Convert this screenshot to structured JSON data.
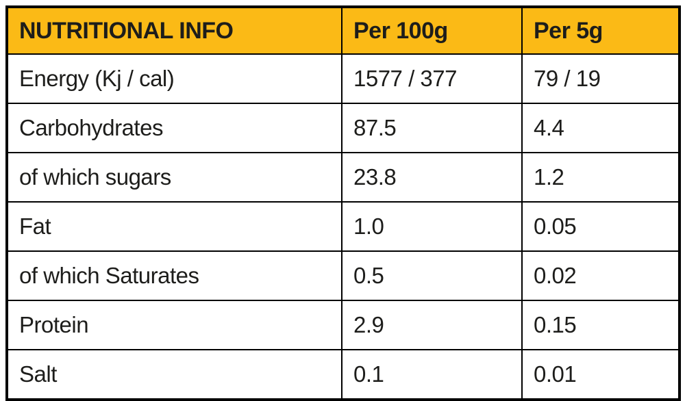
{
  "colors": {
    "header_bg": "#fbba16",
    "border": "#000000",
    "text": "#1d1d1b",
    "row_bg": "#ffffff"
  },
  "table": {
    "header": {
      "col1": "NUTRITIONAL INFO",
      "col2": "Per 100g",
      "col3": "Per 5g"
    },
    "rows": [
      {
        "label": "Energy (Kj / cal)",
        "per100g": "1577 / 377",
        "per5g": "79 / 19"
      },
      {
        "label": "Carbohydrates",
        "per100g": "87.5",
        "per5g": "4.4"
      },
      {
        "label": "of which sugars",
        "per100g": "23.8",
        "per5g": "1.2"
      },
      {
        "label": "Fat",
        "per100g": "1.0",
        "per5g": "0.05"
      },
      {
        "label": "of which Saturates",
        "per100g": "0.5",
        "per5g": "0.02"
      },
      {
        "label": "Protein",
        "per100g": "2.9",
        "per5g": "0.15"
      },
      {
        "label": "Salt",
        "per100g": "0.1",
        "per5g": "0.01"
      }
    ]
  },
  "chart_data": {
    "type": "table",
    "title": "NUTRITIONAL INFO",
    "columns": [
      "NUTRITIONAL INFO",
      "Per 100g",
      "Per 5g"
    ],
    "rows": [
      [
        "Energy (Kj / cal)",
        "1577 / 377",
        "79 / 19"
      ],
      [
        "Carbohydrates",
        "87.5",
        "4.4"
      ],
      [
        "of which sugars",
        "23.8",
        "1.2"
      ],
      [
        "Fat",
        "1.0",
        "0.05"
      ],
      [
        "of which Saturates",
        "0.5",
        "0.02"
      ],
      [
        "Protein",
        "2.9",
        "0.15"
      ],
      [
        "Salt",
        "0.1",
        "0.01"
      ]
    ]
  }
}
